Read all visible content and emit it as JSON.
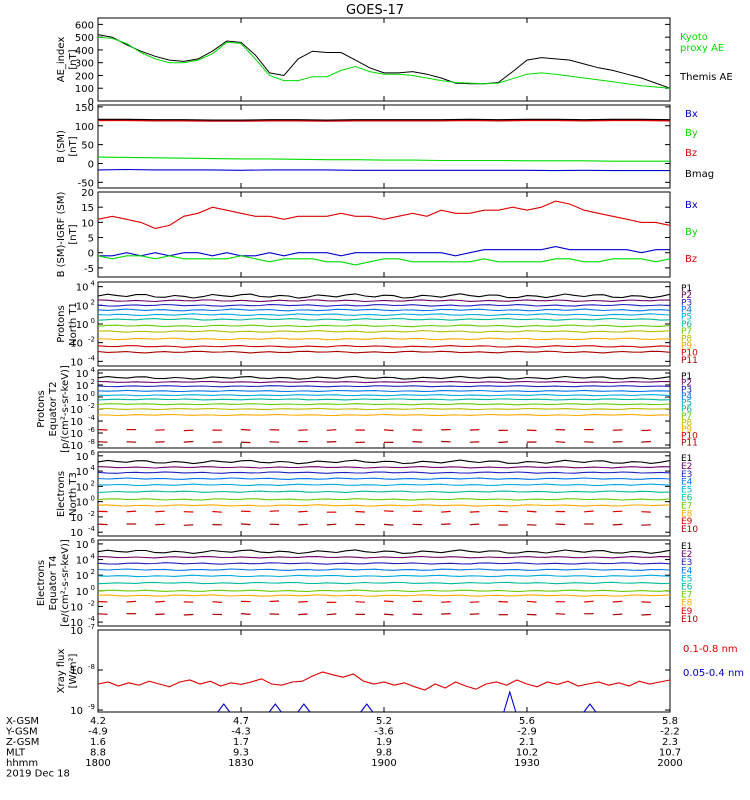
{
  "title": "GOES-17",
  "colors": {
    "black": "#000000",
    "green": "#00dd00",
    "blue": "#0000cc",
    "red": "#dd0000",
    "darkred": "#aa0000"
  },
  "chart_data": [
    {
      "type": "line",
      "ylabel": [
        "AE_index",
        "[nT]"
      ],
      "yticks": [
        "0",
        "100",
        "200",
        "300",
        "400",
        "500",
        "600"
      ],
      "ylim": [
        0,
        650
      ],
      "x": [
        1800,
        1805,
        1810,
        1815,
        1820,
        1825,
        1830,
        1835,
        1840,
        1845,
        1850,
        1855,
        1860,
        1865,
        1870,
        1875,
        1880,
        1885,
        1890,
        1895,
        1900,
        1905,
        1910,
        1915,
        1920,
        1925,
        1930,
        1935,
        1940,
        1945,
        1950,
        1955,
        1960,
        1965,
        1970,
        1975,
        1980,
        1985,
        1990,
        1995,
        2000
      ],
      "series": [
        {
          "name": "Themis AE",
          "color": "#000000",
          "values": [
            520,
            500,
            440,
            390,
            350,
            320,
            310,
            330,
            390,
            470,
            460,
            360,
            220,
            200,
            330,
            390,
            380,
            380,
            320,
            260,
            220,
            220,
            230,
            210,
            180,
            140,
            135,
            135,
            145,
            230,
            320,
            340,
            330,
            320,
            290,
            260,
            240,
            210,
            180,
            140,
            100
          ]
        },
        {
          "name": "Kyoto proxy AE",
          "color": "#00dd00",
          "values": [
            500,
            490,
            450,
            380,
            330,
            300,
            300,
            320,
            370,
            460,
            450,
            330,
            200,
            160,
            160,
            190,
            190,
            240,
            270,
            230,
            210,
            210,
            200,
            180,
            160,
            145,
            140,
            135,
            140,
            175,
            210,
            220,
            210,
            195,
            180,
            165,
            150,
            135,
            120,
            110,
            100
          ]
        }
      ],
      "legend": [
        "Kyoto",
        "proxy AE",
        "Themis AE"
      ]
    },
    {
      "type": "line",
      "ylabel": [
        "B (SM)",
        "[nT]"
      ],
      "yticks": [
        "-50",
        "0",
        "50",
        "100",
        "150"
      ],
      "ylim": [
        -65,
        155
      ],
      "series": [
        {
          "name": "Bx",
          "color": "#0000cc",
          "values": [
            -17,
            -16,
            -17,
            -17,
            -17,
            -18,
            -17,
            -17,
            -17,
            -18,
            -18,
            -18,
            -18,
            -18,
            -18,
            -18,
            -19,
            -18,
            -19,
            -19,
            -19
          ]
        },
        {
          "name": "By",
          "color": "#00dd00",
          "values": [
            17,
            16,
            15,
            14,
            13,
            12,
            12,
            11,
            10,
            10,
            9,
            9,
            8,
            8,
            8,
            7,
            7,
            7,
            6,
            6,
            6
          ]
        },
        {
          "name": "Bz",
          "color": "#dd0000",
          "values": [
            115,
            115,
            114,
            114,
            113,
            113,
            114,
            114,
            113,
            114,
            114,
            114,
            114,
            115,
            114,
            115,
            115,
            114,
            115,
            115,
            114
          ]
        },
        {
          "name": "Bmag",
          "color": "#000000",
          "values": [
            117,
            117,
            116,
            116,
            115,
            115,
            116,
            116,
            115,
            116,
            116,
            116,
            116,
            117,
            116,
            117,
            117,
            116,
            117,
            117,
            116
          ]
        }
      ]
    },
    {
      "type": "line",
      "ylabel": [
        "B (SM)-IGRF (SM)",
        "[nT]"
      ],
      "yticks": [
        "-5",
        "0",
        "5",
        "10",
        "15",
        "20"
      ],
      "ylim": [
        -8,
        20
      ],
      "series": [
        {
          "name": "Bx",
          "color": "#0000cc",
          "values": [
            -1,
            -1,
            0,
            -1,
            0,
            -1,
            0,
            0,
            -1,
            0,
            -1,
            -1,
            0,
            -1,
            0,
            0,
            0,
            -1,
            0,
            0,
            0,
            0,
            0,
            0,
            0,
            -1,
            0,
            1,
            1,
            1,
            1,
            1,
            2,
            1,
            1,
            1,
            1,
            1,
            0,
            1,
            1
          ]
        },
        {
          "name": "By",
          "color": "#00dd00",
          "values": [
            -1,
            -2,
            -1,
            -1,
            -2,
            -1,
            -2,
            -2,
            -2,
            -2,
            -1,
            -2,
            -3,
            -2,
            -2,
            -2,
            -3,
            -3,
            -4,
            -3,
            -2,
            -2,
            -3,
            -3,
            -3,
            -3,
            -3,
            -2,
            -3,
            -3,
            -3,
            -3,
            -2,
            -2,
            -3,
            -3,
            -2,
            -2,
            -2,
            -3,
            -2
          ]
        },
        {
          "name": "Bz",
          "color": "#dd0000",
          "values": [
            11,
            12,
            11,
            10,
            8,
            9,
            12,
            13,
            15,
            14,
            13,
            12,
            12,
            11,
            12,
            12,
            12,
            13,
            12,
            12,
            11,
            12,
            13,
            12,
            14,
            13,
            13,
            14,
            14,
            15,
            14,
            15,
            17,
            16,
            14,
            13,
            12,
            11,
            10,
            10,
            9
          ]
        }
      ]
    },
    {
      "type": "line",
      "log": true,
      "ylabel": [
        "Protons",
        "North T1"
      ],
      "yticks": [
        "10^4",
        "10^2",
        "10^0",
        "10^-2",
        "10^-4"
      ],
      "ylim": [
        -4.5,
        4.5
      ],
      "series_labels": [
        "P1",
        "P2",
        "P3",
        "P4",
        "P5",
        "P6",
        "P7",
        "P8",
        "P9",
        "P10",
        "P11"
      ],
      "series_colors": [
        "#000000",
        "#6a006a",
        "#2020c0",
        "#0077ee",
        "#00aadd",
        "#00bb99",
        "#66cc00",
        "#bbbb00",
        "#ffaa00",
        "#cc0000",
        "#aa0000"
      ],
      "levels": [
        3.0,
        2.5,
        2.0,
        1.5,
        1.0,
        0.5,
        -0.2,
        -0.8,
        -1.6,
        -2.4,
        -3.0
      ]
    },
    {
      "type": "line",
      "log": true,
      "ylabel": [
        "Protons",
        "Equator T2",
        "[p/(cm^2-s-sr-keV)]"
      ],
      "yticks": [
        "10^4",
        "10^2",
        "10^0",
        "10^-2",
        "10^-4",
        "10^-6",
        "10^-8"
      ],
      "ylim": [
        -8.5,
        4.5
      ],
      "series_labels": [
        "P1",
        "P2",
        "P3",
        "P4",
        "P5",
        "P6",
        "P7",
        "P8",
        "P9",
        "P10",
        "P11"
      ],
      "series_colors": [
        "#000000",
        "#6a006a",
        "#2020c0",
        "#0077ee",
        "#00aadd",
        "#00bb99",
        "#66cc00",
        "#bbbb00",
        "#ffaa00",
        "#cc0000",
        "#aa0000"
      ],
      "levels": [
        3.2,
        2.5,
        1.8,
        1.0,
        0.3,
        -0.4,
        -1.2,
        -2.0,
        -3.0,
        -5.5,
        -7.5
      ]
    },
    {
      "type": "line",
      "log": true,
      "ylabel": [
        "Electrons",
        "North T3"
      ],
      "yticks": [
        "10^6",
        "10^4",
        "10^2",
        "10^0",
        "10^-2",
        "10^-4"
      ],
      "ylim": [
        -4.5,
        6.5
      ],
      "series_labels": [
        "E1",
        "E2",
        "E3",
        "E4",
        "E5",
        "E6",
        "E7",
        "E8",
        "E9",
        "E10"
      ],
      "series_colors": [
        "#000000",
        "#6a006a",
        "#2020c0",
        "#0077ee",
        "#00aadd",
        "#00bb99",
        "#66cc00",
        "#ffaa00",
        "#dd0000",
        "#aa0000"
      ],
      "levels": [
        5.2,
        4.5,
        3.8,
        3.0,
        2.2,
        1.3,
        0.3,
        -0.5,
        -1.3,
        -3.0
      ]
    },
    {
      "type": "line",
      "log": true,
      "ylabel": [
        "Electrons",
        "Equator T4",
        "[e/(cm^2-s-sr-keV)]"
      ],
      "yticks": [
        "10^6",
        "10^4",
        "10^2",
        "10^0",
        "10^-2",
        "10^-4"
      ],
      "ylim": [
        -4.5,
        6.5
      ],
      "series_labels": [
        "E1",
        "E2",
        "E3",
        "E4",
        "E5",
        "E6",
        "E7",
        "E8",
        "E9",
        "E10"
      ],
      "series_colors": [
        "#000000",
        "#6a006a",
        "#2020c0",
        "#0077ee",
        "#00aadd",
        "#00bb99",
        "#66cc00",
        "#ffaa00",
        "#dd0000",
        "#aa0000"
      ],
      "levels": [
        5.0,
        4.3,
        3.5,
        2.7,
        1.9,
        1.0,
        0.0,
        -0.6,
        -1.4,
        -3.0
      ]
    },
    {
      "type": "line",
      "log": true,
      "ylabel": [
        "Xray flux",
        "[W/m^2]"
      ],
      "yticks": [
        "10^-7",
        "10^-8",
        "10^-9"
      ],
      "ylim": [
        -9.05,
        -7.0
      ],
      "series": [
        {
          "name": "0.1-0.8 nm",
          "color": "#dd0000",
          "values": [
            -8.35,
            -8.3,
            -8.4,
            -8.32,
            -8.38,
            -8.28,
            -8.35,
            -8.42,
            -8.3,
            -8.25,
            -8.35,
            -8.28,
            -8.4,
            -8.32,
            -8.36,
            -8.3,
            -8.22,
            -8.35,
            -8.38,
            -8.3,
            -8.28,
            -8.15,
            -8.05,
            -8.12,
            -8.18,
            -8.1,
            -8.28,
            -8.35,
            -8.3,
            -8.38,
            -8.32,
            -8.42,
            -8.5,
            -8.35,
            -8.45,
            -8.3,
            -8.4,
            -8.48,
            -8.35,
            -8.3,
            -8.38,
            -8.25,
            -8.35,
            -8.42,
            -8.3,
            -8.36,
            -8.28,
            -8.4,
            -8.35,
            -8.3,
            -8.38,
            -8.32,
            -8.4,
            -8.28,
            -8.35,
            -8.3,
            -8.25
          ]
        },
        {
          "name": "0.05-0.4 nm",
          "color": "#0000cc",
          "spikes": [
            0.22,
            0.31,
            0.36,
            0.47,
            0.72,
            0.86
          ]
        }
      ]
    }
  ],
  "xaxis": {
    "rows": [
      {
        "label": "X-GSM",
        "values": [
          "4.2",
          "4.7",
          "5.2",
          "5.6",
          "5.8"
        ]
      },
      {
        "label": "Y-GSM",
        "values": [
          "-4.9",
          "-4.3",
          "-3.6",
          "-2.9",
          "-2.2"
        ]
      },
      {
        "label": "Z-GSM",
        "values": [
          "1.6",
          "1.7",
          "1.9",
          "2.1",
          "2.3"
        ]
      },
      {
        "label": "MLT",
        "values": [
          "8.8",
          "9.3",
          "9.8",
          "10.2",
          "10.7"
        ]
      },
      {
        "label": "hhmm",
        "values": [
          "1800",
          "1830",
          "1900",
          "1930",
          "2000"
        ]
      }
    ],
    "date": "2019 Dec 18"
  },
  "legends": {
    "ae": [
      {
        "text": "Kyoto",
        "color": "#00dd00"
      },
      {
        "text": "proxy AE",
        "color": "#00dd00"
      },
      {
        "text": "Themis AE",
        "color": "#000000"
      }
    ],
    "b": [
      {
        "text": "Bx",
        "color": "#0000cc"
      },
      {
        "text": "By",
        "color": "#00dd00"
      },
      {
        "text": "Bz",
        "color": "#dd0000"
      },
      {
        "text": "Bmag",
        "color": "#000000"
      }
    ],
    "bdiff": [
      {
        "text": "Bx",
        "color": "#0000cc"
      },
      {
        "text": "By",
        "color": "#00dd00"
      },
      {
        "text": "Bz",
        "color": "#dd0000"
      }
    ],
    "xray": [
      {
        "text": "0.1-0.8 nm",
        "color": "#dd0000"
      },
      {
        "text": "0.05-0.4 nm",
        "color": "#0000cc"
      }
    ]
  }
}
